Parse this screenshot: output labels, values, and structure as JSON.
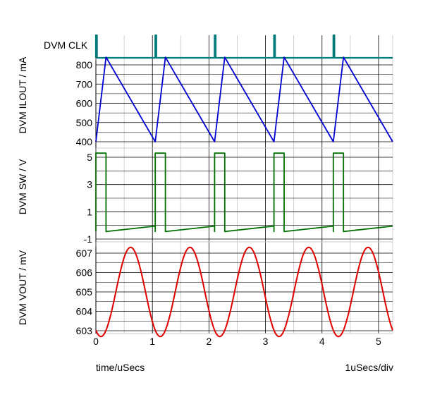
{
  "chart_data": {
    "type": "line",
    "x_axis": {
      "label": "time/uSecs",
      "scale_note": "1uSecs/div",
      "range": [
        0,
        5.25
      ],
      "ticks": [
        0,
        1,
        2,
        3,
        4,
        5
      ],
      "grid": true
    },
    "clock_period_us": 1.05,
    "panels": [
      {
        "id": "clk",
        "ylabel": "DVM CLK",
        "color": "#007b7b",
        "ylim": [
          0,
          1
        ],
        "yticks": [],
        "series": [
          {
            "name": "DVM CLK",
            "pulses_at_us": [
              0.0,
              1.05,
              2.1,
              3.15,
              4.2
            ],
            "pulse_width_us": 0.02
          }
        ]
      },
      {
        "id": "ilout",
        "ylabel": "DVM ILOUT / mA",
        "color": "#0000d0",
        "ylim": [
          400,
          840
        ],
        "yticks": [
          400,
          500,
          600,
          700,
          800
        ],
        "series": [
          {
            "name": "DVM ILOUT",
            "points": [
              [
                0.0,
                400
              ],
              [
                0.18,
                840
              ],
              [
                1.05,
                400
              ],
              [
                1.23,
                840
              ],
              [
                2.1,
                400
              ],
              [
                2.28,
                840
              ],
              [
                3.15,
                400
              ],
              [
                3.33,
                840
              ],
              [
                4.2,
                400
              ],
              [
                4.38,
                840
              ],
              [
                5.25,
                400
              ]
            ]
          }
        ]
      },
      {
        "id": "sw",
        "ylabel": "DVM SW / V",
        "color": "#007000",
        "ylim": [
          -1.3,
          5.6
        ],
        "yticks": [
          -1,
          1,
          3,
          5
        ],
        "series": [
          {
            "name": "DVM SW",
            "on_level": 5.3,
            "on_width_us": 0.18,
            "off_level_start": -0.45,
            "off_level_end": -0.05,
            "period_us": 1.05
          }
        ]
      },
      {
        "id": "vout",
        "ylabel": "DVM VOUT / mV",
        "color": "#e00000",
        "ylim": [
          602.6,
          607.4
        ],
        "yticks": [
          603,
          604,
          605,
          606,
          607
        ],
        "series": [
          {
            "name": "DVM VOUT",
            "mean": 605.0,
            "amplitude": 2.3,
            "min_at_us": 0.09,
            "period_us": 1.05
          }
        ]
      }
    ]
  }
}
